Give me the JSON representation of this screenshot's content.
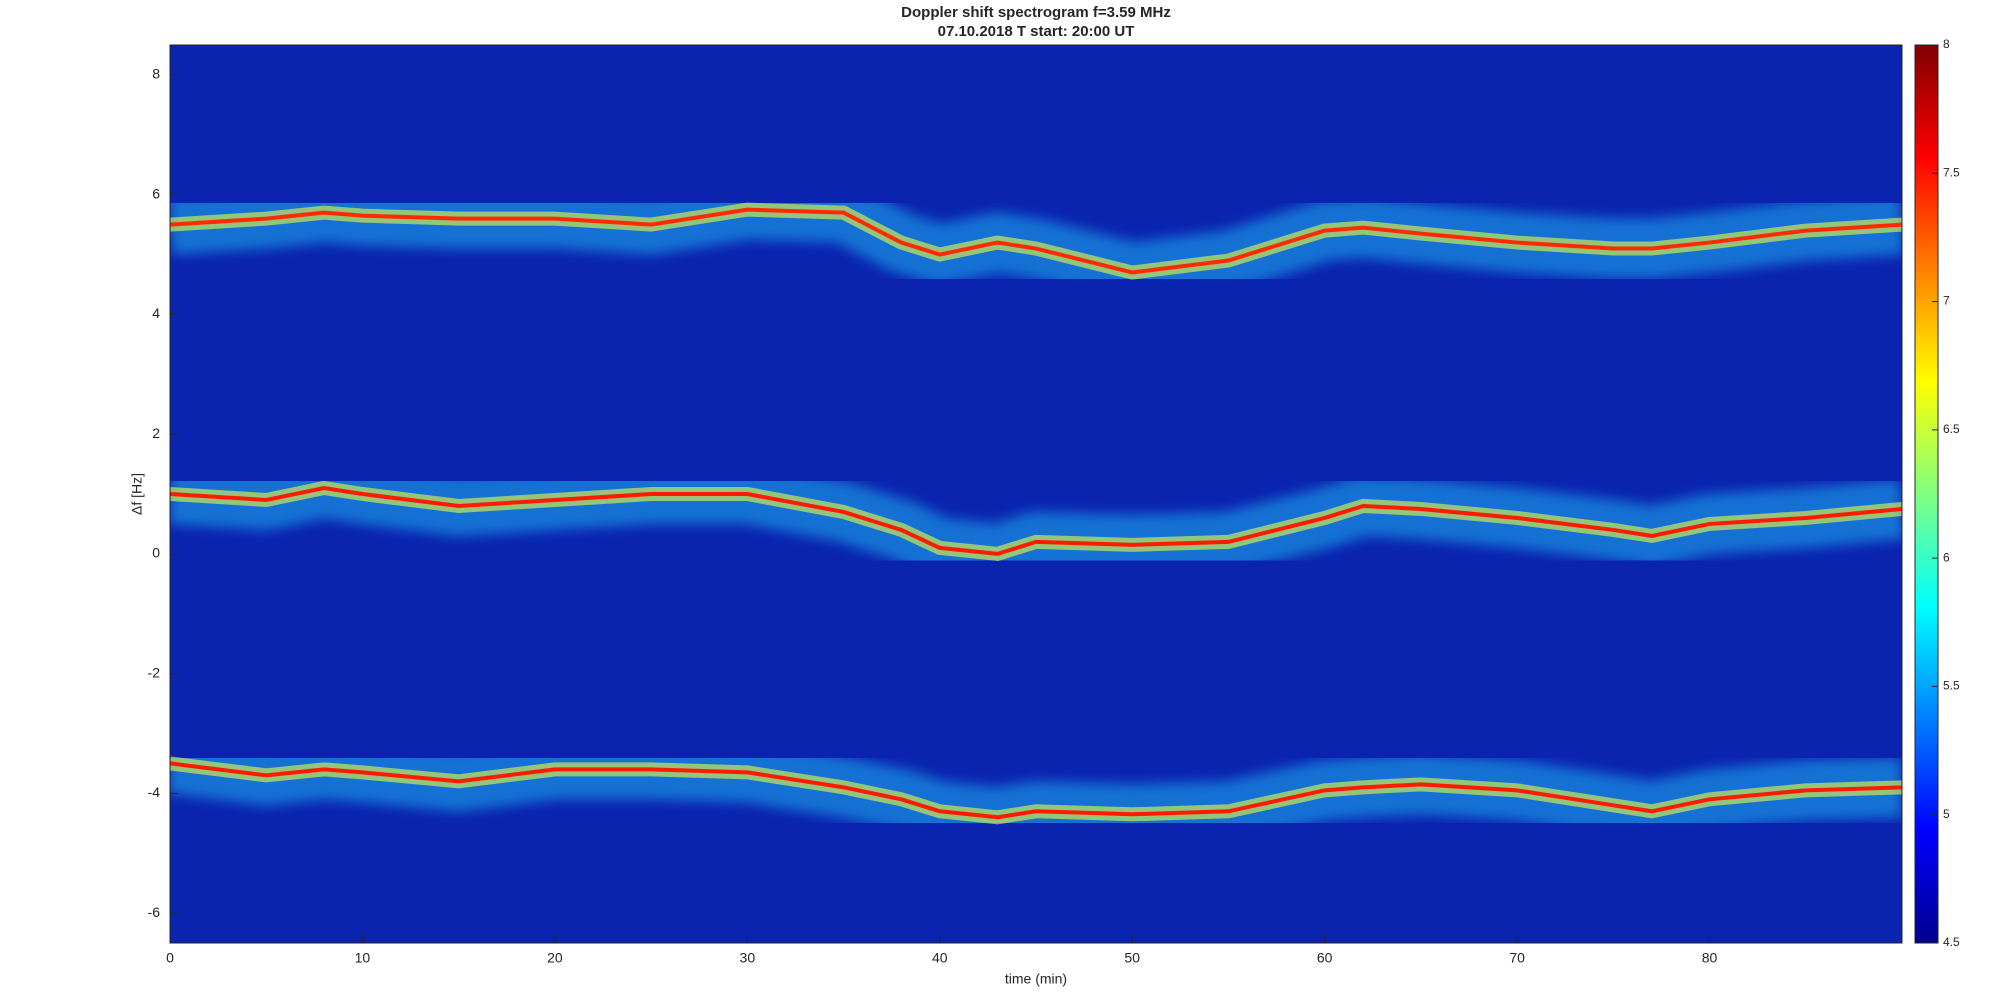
{
  "chart_data": {
    "type": "spectrogram",
    "title": "Doppler shift spectrogram f=3.59 MHz",
    "subtitle": "07.10.2018    T start: 20:00 UT",
    "x_label": "time (min)",
    "y_label": "Δf [Hz]",
    "xlim": [
      0,
      90
    ],
    "xticks": [
      0,
      10,
      20,
      30,
      40,
      50,
      60,
      70,
      80
    ],
    "ylim": [
      -6.5,
      8.5
    ],
    "yticks": [
      -6,
      -4,
      -2,
      0,
      2,
      4,
      6,
      8
    ],
    "clim": [
      4.5,
      8
    ],
    "cticks": [
      4.5,
      5,
      5.5,
      6,
      6.5,
      7,
      7.5,
      8
    ],
    "background": "#0b24b0",
    "x": [
      0,
      5,
      8,
      10,
      15,
      20,
      25,
      30,
      35,
      38,
      40,
      43,
      45,
      50,
      55,
      60,
      62,
      65,
      70,
      75,
      77,
      80,
      85,
      90
    ],
    "series": [
      {
        "color": "#ff2a00",
        "values": [
          5.5,
          5.6,
          5.7,
          5.65,
          5.6,
          5.6,
          5.5,
          5.75,
          5.7,
          5.2,
          5.0,
          5.2,
          5.1,
          4.7,
          4.9,
          5.4,
          5.45,
          5.35,
          5.2,
          5.1,
          5.1,
          5.2,
          5.4,
          5.5
        ]
      },
      {
        "color": "#ff1a00",
        "values": [
          1.0,
          0.9,
          1.1,
          1.0,
          0.8,
          0.9,
          1.0,
          1.0,
          0.7,
          0.4,
          0.1,
          0.0,
          0.2,
          0.15,
          0.2,
          0.6,
          0.8,
          0.75,
          0.6,
          0.4,
          0.3,
          0.5,
          0.6,
          0.75
        ]
      },
      {
        "color": "#ff1a00",
        "values": [
          -3.5,
          -3.7,
          -3.6,
          -3.65,
          -3.8,
          -3.6,
          -3.6,
          -3.65,
          -3.9,
          -4.1,
          -4.3,
          -4.4,
          -4.3,
          -4.35,
          -4.3,
          -3.95,
          -3.9,
          -3.85,
          -3.95,
          -4.2,
          -4.3,
          -4.1,
          -3.95,
          -3.9
        ]
      }
    ]
  }
}
